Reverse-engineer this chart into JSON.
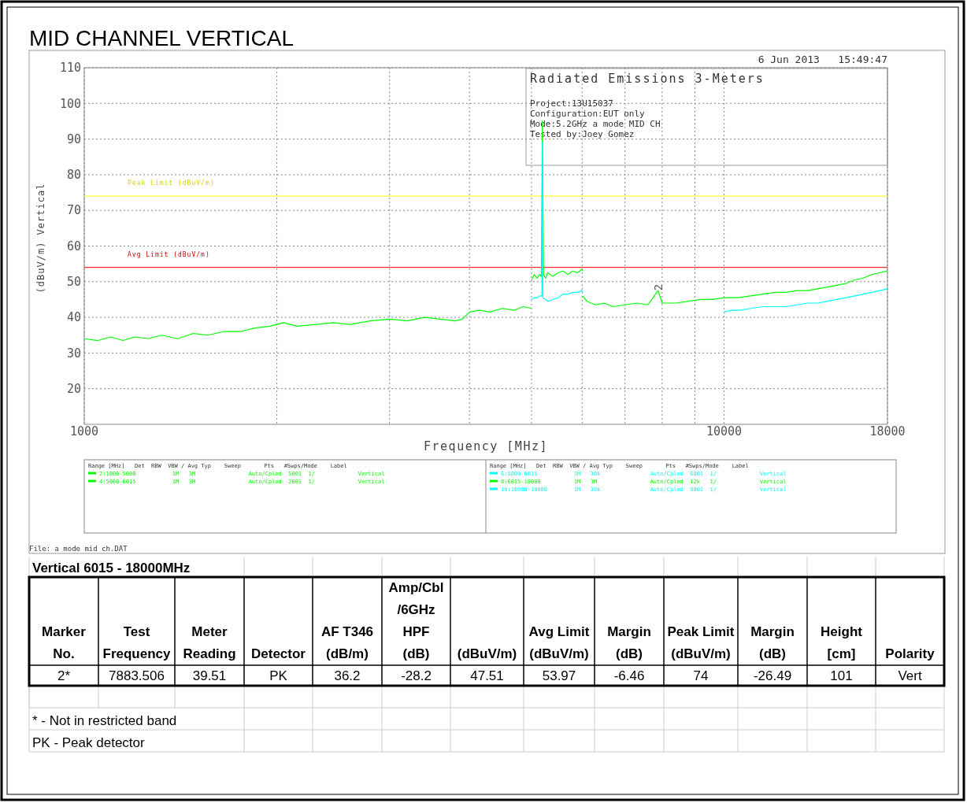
{
  "chart_data": [
    {
      "type": "line",
      "title": "MID CHANNEL VERTICAL",
      "xlabel": "Frequency [MHz]",
      "ylabel": "(dBuV/m) Vertical",
      "log": "x",
      "grid": true,
      "legend": "bottom",
      "legend_title": "Range [MHz]   Det  RBW  VBW / Avg Typ    Sweep       Pts   #Swps/Mode    Label",
      "xlim": [
        1000,
        18000
      ],
      "xticks": [
        1000,
        {
          "value": 2000,
          "label": null
        },
        {
          "value": 3000,
          "label": null
        },
        {
          "value": 4000,
          "label": null
        },
        {
          "value": 5000,
          "label": null
        },
        {
          "value": 6000,
          "label": null
        },
        {
          "value": 7000,
          "label": null
        },
        {
          "value": 8000,
          "label": null
        },
        {
          "value": 9000,
          "label": null
        },
        10000,
        18000
      ],
      "ylim": [
        10,
        110
      ],
      "yticks": [
        20,
        30,
        40,
        50,
        60,
        70,
        80,
        90,
        100,
        110
      ],
      "ref_lines": [
        {
          "axis": "y",
          "value": 74,
          "label": "Peak Limit (dBuV/m)",
          "color": "#ffff00"
        },
        {
          "axis": "y",
          "value": 54,
          "label": "Avg Limit (dBuV/m)",
          "color": "#ff0000"
        }
      ],
      "series": [
        {
          "name": "2:1000-5000           1M   3M                Auto/Cpled  5001  1/             Vertical",
          "color": "#00ff00",
          "x": [
            1000,
            1050,
            1100,
            1150,
            1200,
            1260,
            1320,
            1400,
            1480,
            1560,
            1650,
            1750,
            1850,
            1950,
            2050,
            2150,
            2300,
            2450,
            2600,
            2800,
            3000,
            3200,
            3400,
            3600,
            3800,
            3900,
            4000,
            4150,
            4300,
            4500,
            4700,
            4850,
            5000
          ],
          "values": [
            34,
            33.5,
            34.5,
            33.5,
            34.5,
            34,
            35,
            34,
            35.5,
            35,
            36,
            36,
            37,
            37.5,
            38.5,
            37.5,
            38,
            38.5,
            38,
            39,
            39.5,
            39,
            40,
            39.5,
            39,
            39.5,
            41.5,
            42,
            41.5,
            42.5,
            42,
            43,
            42.5
          ]
        },
        {
          "name": "4:5000-6015           1M   3M                Auto/Cpled  2001  1/             Vertical",
          "color": "#00ff00",
          "x": [
            5000,
            5050,
            5100,
            5150,
            5180,
            5200,
            5220,
            5260,
            5300,
            5400,
            5500,
            5600,
            5700,
            5800,
            5900,
            6000,
            6015
          ],
          "values": [
            50.5,
            52,
            51,
            52,
            51.5,
            95,
            52,
            51,
            52.5,
            51.5,
            52.5,
            53,
            52,
            53,
            52.5,
            53.5,
            53
          ]
        },
        {
          "name": "6:5000-6015           1M   30k               Auto/Cpled  6001  1/             Vertical",
          "color": "#00ffff",
          "x": [
            5000,
            5050,
            5100,
            5150,
            5190,
            5200,
            5210,
            5260,
            5300,
            5400,
            5500,
            5600,
            5700,
            5800,
            5900,
            6000,
            6015
          ],
          "values": [
            45,
            45.5,
            45.5,
            46,
            46,
            89,
            45.5,
            45,
            44.5,
            45,
            45.5,
            46.5,
            46.5,
            47,
            47,
            47.5,
            47
          ]
        },
        {
          "name": "8:6015-18000          1M   3M                Auto/Cpled  12k   1/             Vertical",
          "color": "#00ff00",
          "x": [
            6015,
            6100,
            6300,
            6500,
            6700,
            7000,
            7300,
            7600,
            7883.506,
            8000,
            8400,
            8800,
            9200,
            9600,
            10000,
            10500,
            11000,
            11500,
            12000,
            12500,
            13000,
            13500,
            14000,
            14500,
            15000,
            15500,
            16000,
            16500,
            17000,
            17500,
            18000
          ],
          "values": [
            46,
            44.5,
            43.5,
            44,
            43,
            43.5,
            44,
            43.5,
            47.5,
            44,
            44,
            44.5,
            45,
            45,
            45.5,
            45.5,
            46,
            46.5,
            47,
            47,
            47.5,
            47.5,
            48,
            48.5,
            49,
            49.5,
            50.5,
            51,
            52,
            52.5,
            53
          ]
        },
        {
          "name": "10:10000-18000        1M   30k               Auto/Cpled  9001  1/             Vertical",
          "color": "#00ffff",
          "x": [
            10000,
            10300,
            10600,
            11000,
            11500,
            12000,
            12500,
            13000,
            13500,
            14000,
            14500,
            15000,
            15500,
            16000,
            16500,
            17000,
            17500,
            18000
          ],
          "values": [
            41.5,
            42,
            42,
            42.5,
            43,
            43,
            43,
            43.5,
            44,
            44,
            44.5,
            45,
            45.5,
            46,
            46.5,
            47,
            47.5,
            48
          ]
        }
      ],
      "annotations": [
        "6 Jun 2013   15:49:47",
        "Radiated Emissions 3-Meters",
        "Project:13U15037",
        "Configuration:EUT only",
        "Mode:5.2GHz a mode MID CH",
        "Tested by:Joey Gomez",
        {
          "text": "2",
          "x": 7883.506,
          "y": 47.5
        },
        "File: a mode mid ch.DAT"
      ]
    },
    {
      "type": "other",
      "title": "Vertical 6015 - 18000MHz",
      "categories": [
        "Marker\nNo.",
        "Test\nFrequency",
        "Meter\nReading",
        "Detector",
        "AF T346\n(dB/m)",
        "Amp/Cbl\n/6GHz\nHPF\n(dB)",
        "(dBuV/m)",
        "Avg Limit\n(dBuV/m)",
        "Margin\n(dB)",
        "Peak Limit\n(dBuV/m)",
        "Margin\n(dB)",
        "Height\n[cm]",
        "Polarity"
      ],
      "value_labels": [
        "2*",
        "7883.506",
        "39.51",
        "PK",
        "36.2",
        "-28.2",
        "47.51",
        "53.97",
        "-6.46",
        "74",
        "-26.49",
        "101",
        "Vert"
      ],
      "annotations": [
        "* - Not in restricted band",
        "PK - Peak detector"
      ]
    }
  ]
}
